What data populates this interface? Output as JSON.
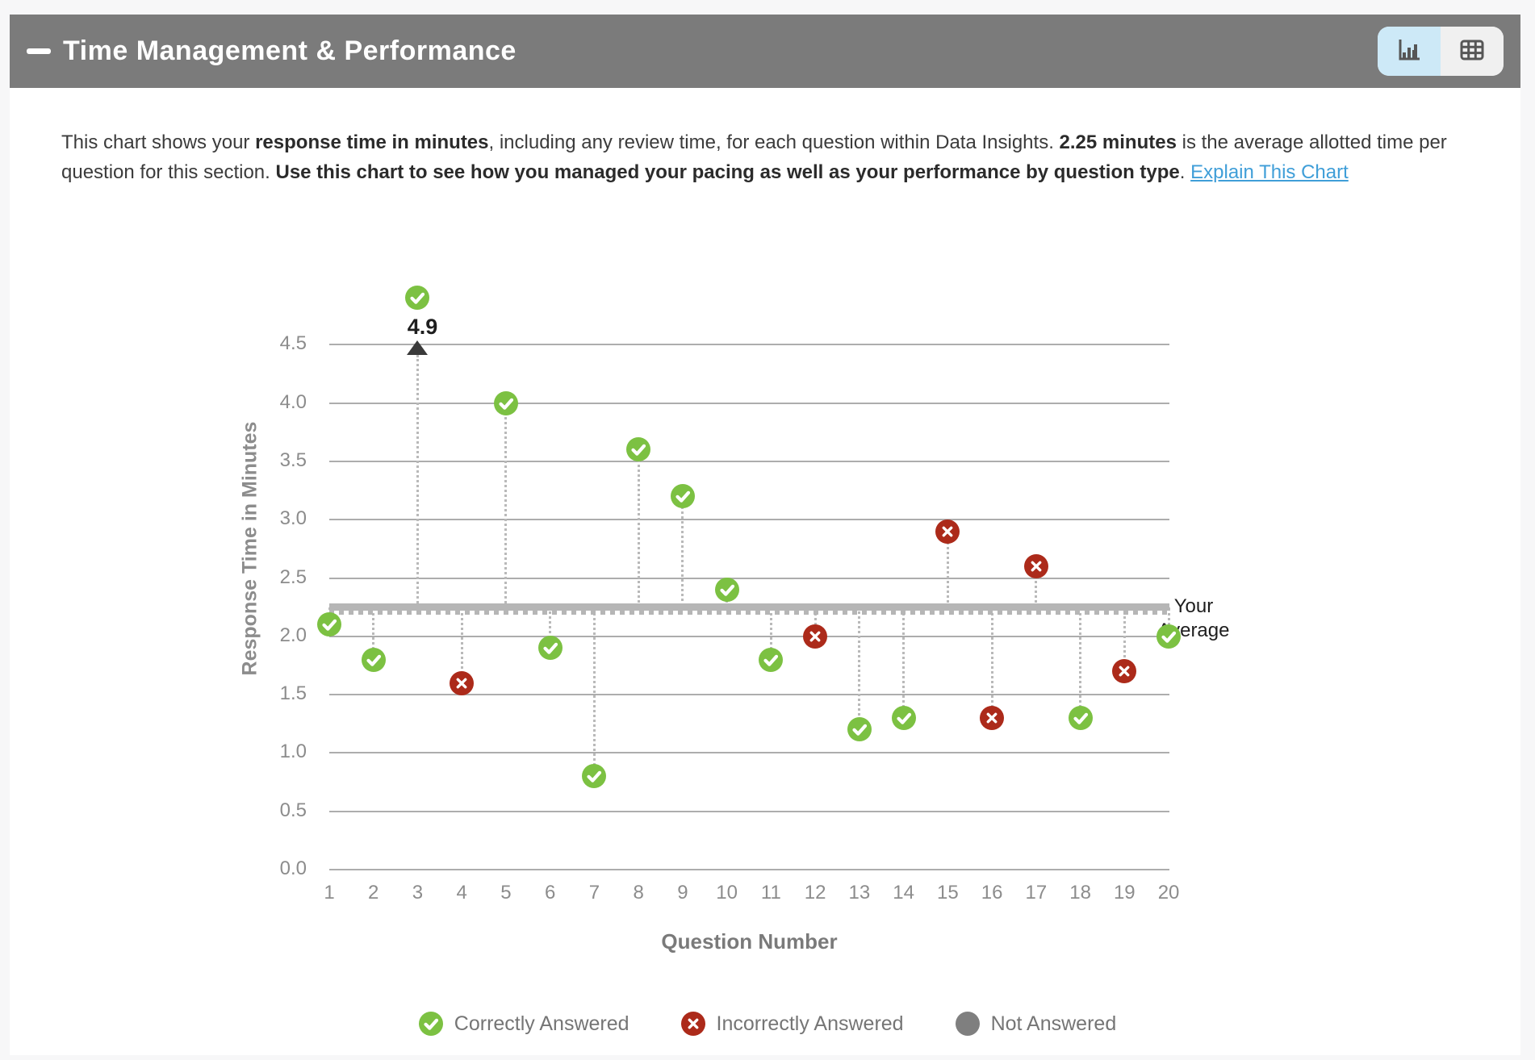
{
  "header": {
    "title": "Time Management & Performance",
    "background": "#7b7b7b",
    "view_toggle": {
      "chart_button": {
        "icon": "bar-chart-icon",
        "selected": true
      },
      "table_button": {
        "icon": "table-icon",
        "selected": false
      },
      "active_background": "#cde9f7",
      "inactive_background": "#f0f0f0"
    }
  },
  "description": {
    "segments": [
      {
        "text": "This chart shows your "
      },
      {
        "text": "response time in minutes",
        "bold": true
      },
      {
        "text": ", including any review time, for each question within Data Insights. "
      },
      {
        "text": "2.25 minutes",
        "bold": true
      },
      {
        "text": " is the average allotted time per question for this section. "
      },
      {
        "text": "Use this chart to see how you managed your pacing as well as your performance by question type",
        "bold": true
      },
      {
        "text": ". "
      },
      {
        "text": "Explain This Chart",
        "link": true
      }
    ]
  },
  "chart_data": {
    "type": "scatter",
    "title": "",
    "xlabel": "Question Number",
    "ylabel": "Response Time in Minutes",
    "ylim": [
      0,
      4.5
    ],
    "grid": true,
    "yticks": [
      "0.0",
      "0.5",
      "1.0",
      "1.5",
      "2.0",
      "2.5",
      "3.0",
      "3.5",
      "4.0",
      "4.5"
    ],
    "xticks": [
      "1",
      "2",
      "3",
      "4",
      "5",
      "6",
      "7",
      "8",
      "9",
      "10",
      "11",
      "12",
      "13",
      "14",
      "15",
      "16",
      "17",
      "18",
      "19",
      "20"
    ],
    "points": [
      {
        "question": 1,
        "minutes": 2.1,
        "status": "correct"
      },
      {
        "question": 2,
        "minutes": 1.8,
        "status": "correct"
      },
      {
        "question": 3,
        "minutes": 4.9,
        "status": "correct"
      },
      {
        "question": 4,
        "minutes": 1.6,
        "status": "incorrect"
      },
      {
        "question": 5,
        "minutes": 4.0,
        "status": "correct"
      },
      {
        "question": 6,
        "minutes": 1.9,
        "status": "correct"
      },
      {
        "question": 7,
        "minutes": 0.8,
        "status": "correct"
      },
      {
        "question": 8,
        "minutes": 3.6,
        "status": "correct"
      },
      {
        "question": 9,
        "minutes": 3.2,
        "status": "correct"
      },
      {
        "question": 10,
        "minutes": 2.4,
        "status": "correct"
      },
      {
        "question": 11,
        "minutes": 1.8,
        "status": "correct"
      },
      {
        "question": 12,
        "minutes": 2.0,
        "status": "incorrect"
      },
      {
        "question": 13,
        "minutes": 1.2,
        "status": "correct"
      },
      {
        "question": 14,
        "minutes": 1.3,
        "status": "correct"
      },
      {
        "question": 15,
        "minutes": 2.9,
        "status": "incorrect"
      },
      {
        "question": 16,
        "minutes": 1.3,
        "status": "incorrect"
      },
      {
        "question": 17,
        "minutes": 2.6,
        "status": "incorrect"
      },
      {
        "question": 18,
        "minutes": 1.3,
        "status": "correct"
      },
      {
        "question": 19,
        "minutes": 1.7,
        "status": "incorrect"
      },
      {
        "question": 20,
        "minutes": 2.0,
        "status": "correct"
      }
    ],
    "average_line": {
      "value": 2.25,
      "label": "Your Average"
    },
    "offscale_annotation": {
      "question": 3,
      "label": "4.9"
    },
    "legend": [
      {
        "label": "Correctly Answered",
        "status": "correct"
      },
      {
        "label": "Incorrectly Answered",
        "status": "incorrect"
      },
      {
        "label": "Not Answered",
        "status": "not-answered"
      }
    ],
    "status_colors": {
      "correct": "#7cc142",
      "incorrect": "#ac2a1a",
      "not-answered": "#7f7f7f"
    }
  }
}
